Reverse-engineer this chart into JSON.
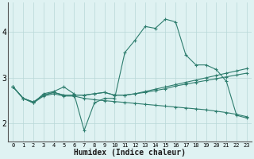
{
  "title": "",
  "xlabel": "Humidex (Indice chaleur)",
  "ylabel": "",
  "background_color": "#dff2f2",
  "grid_color": "#b8d8d8",
  "line_color": "#2e7d6e",
  "x_values": [
    0,
    1,
    2,
    3,
    4,
    5,
    6,
    7,
    8,
    9,
    10,
    11,
    12,
    13,
    14,
    15,
    16,
    17,
    18,
    19,
    20,
    21,
    22,
    23
  ],
  "series1": [
    2.8,
    2.55,
    2.45,
    2.65,
    2.7,
    2.8,
    2.65,
    1.85,
    2.45,
    2.55,
    2.55,
    3.55,
    3.82,
    4.12,
    4.08,
    4.28,
    4.22,
    3.5,
    3.28,
    3.28,
    3.18,
    2.92,
    2.18,
    2.12
  ],
  "series2": [
    2.8,
    2.55,
    2.47,
    2.62,
    2.68,
    2.62,
    2.62,
    2.62,
    2.65,
    2.68,
    2.62,
    2.62,
    2.65,
    2.68,
    2.72,
    2.76,
    2.82,
    2.86,
    2.9,
    2.94,
    2.98,
    3.02,
    3.06,
    3.1
  ],
  "series3": [
    2.8,
    2.55,
    2.47,
    2.62,
    2.68,
    2.62,
    2.62,
    2.62,
    2.65,
    2.68,
    2.62,
    2.62,
    2.65,
    2.7,
    2.75,
    2.8,
    2.85,
    2.9,
    2.95,
    3.0,
    3.05,
    3.1,
    3.15,
    3.2
  ],
  "series4": [
    2.8,
    2.55,
    2.45,
    2.6,
    2.65,
    2.6,
    2.6,
    2.55,
    2.52,
    2.5,
    2.48,
    2.46,
    2.44,
    2.42,
    2.4,
    2.38,
    2.36,
    2.34,
    2.32,
    2.3,
    2.27,
    2.24,
    2.2,
    2.15
  ],
  "ylim": [
    1.6,
    4.65
  ],
  "yticks": [
    2,
    3,
    4
  ],
  "xlim": [
    -0.5,
    23.5
  ],
  "ytick_fontsize": 7,
  "xtick_fontsize": 5,
  "xlabel_fontsize": 7
}
